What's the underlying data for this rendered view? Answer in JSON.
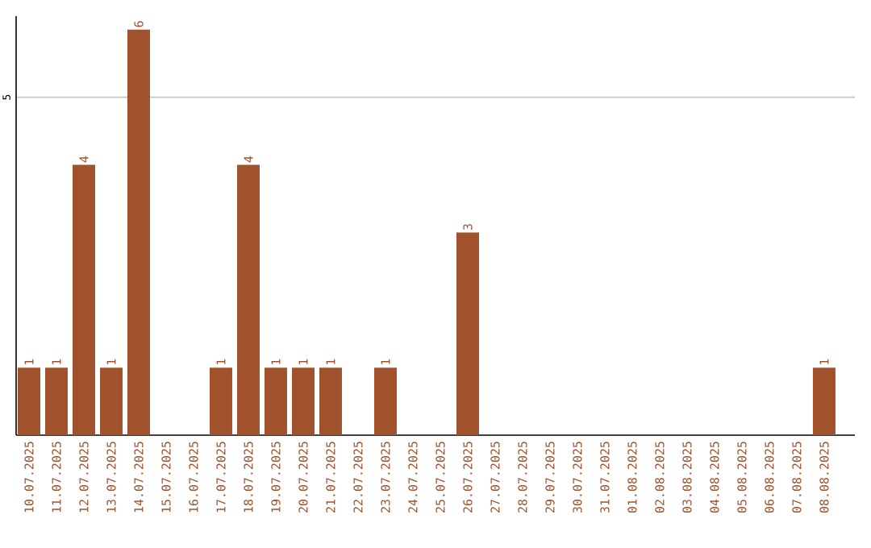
{
  "chart_data": {
    "type": "bar",
    "categories": [
      "10.07.2025",
      "11.07.2025",
      "12.07.2025",
      "13.07.2025",
      "14.07.2025",
      "15.07.2025",
      "16.07.2025",
      "17.07.2025",
      "18.07.2025",
      "19.07.2025",
      "20.07.2025",
      "21.07.2025",
      "22.07.2025",
      "23.07.2025",
      "24.07.2025",
      "25.07.2025",
      "26.07.2025",
      "27.07.2025",
      "28.07.2025",
      "29.07.2025",
      "30.07.2025",
      "31.07.2025",
      "01.08.2025",
      "02.08.2025",
      "03.08.2025",
      "04.08.2025",
      "05.08.2025",
      "06.08.2025",
      "07.08.2025",
      "08.08.2025"
    ],
    "values": [
      1,
      1,
      4,
      1,
      6,
      0,
      0,
      1,
      4,
      1,
      1,
      1,
      0,
      1,
      0,
      0,
      3,
      0,
      0,
      0,
      0,
      0,
      0,
      0,
      0,
      0,
      0,
      0,
      0,
      1
    ],
    "value_labels": [
      "1",
      "1",
      "4",
      "1",
      "6",
      null,
      null,
      "1",
      "4",
      "1",
      "1",
      "1",
      null,
      "1",
      null,
      null,
      "3",
      null,
      null,
      null,
      null,
      null,
      null,
      null,
      null,
      null,
      null,
      null,
      null,
      "1"
    ],
    "color": "#a0522d",
    "ylim": [
      0,
      6.2
    ],
    "yticks": [
      5
    ],
    "grid": "y"
  }
}
